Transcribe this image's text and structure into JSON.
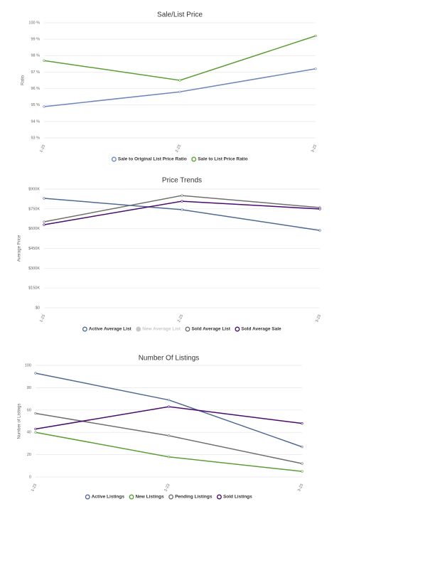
{
  "chart_data": [
    {
      "type": "line",
      "title": "Sale/List Price",
      "y_label": "Ratio",
      "x": [
        "1-23",
        "2-23",
        "3-23"
      ],
      "ylim": [
        93,
        100
      ],
      "yticks": [
        {
          "value": 93,
          "label": "93 %"
        },
        {
          "value": 94,
          "label": "94 %"
        },
        {
          "value": 95,
          "label": "95 %"
        },
        {
          "value": 96,
          "label": "96 %"
        },
        {
          "value": 97,
          "label": "97 %"
        },
        {
          "value": 98,
          "label": "98 %"
        },
        {
          "value": 99,
          "label": "99 %"
        },
        {
          "value": 100,
          "label": "100 %"
        }
      ],
      "grid": true,
      "series": [
        {
          "name": "Sale to Original List Price Ratio",
          "color": "#6f86bd",
          "values": [
            94.9,
            95.8,
            97.2
          ]
        },
        {
          "name": "Sale to List Price Ratio",
          "color": "#5c9e35",
          "values": [
            97.7,
            96.5,
            99.2
          ]
        }
      ]
    },
    {
      "type": "line",
      "title": "Price Trends",
      "y_label": "Average Price",
      "x": [
        "1-23",
        "2-23",
        "3-23"
      ],
      "ylim": [
        0,
        900000
      ],
      "yticks": [
        {
          "value": 0,
          "label": "$0"
        },
        {
          "value": 150000,
          "label": "$150K"
        },
        {
          "value": 300000,
          "label": "$300K"
        },
        {
          "value": 450000,
          "label": "$450K"
        },
        {
          "value": 600000,
          "label": "$600K"
        },
        {
          "value": 750000,
          "label": "$750K"
        },
        {
          "value": 900000,
          "label": "$900K"
        }
      ],
      "grid": true,
      "series": [
        {
          "name": "Active Average List",
          "color": "#4e6a92",
          "values": [
            830000,
            744000,
            587000
          ]
        },
        {
          "name": "New Average List",
          "color": "#c8c8c8",
          "hidden": true,
          "values": [
            null,
            null,
            null
          ]
        },
        {
          "name": "Sold Average List",
          "color": "#707070",
          "values": [
            652000,
            851000,
            760000
          ]
        },
        {
          "name": "Sold Average Sale",
          "color": "#4b0a6e",
          "values": [
            630000,
            808000,
            749000
          ]
        }
      ]
    },
    {
      "type": "line",
      "title": "Number Of Listings",
      "y_label": "Number of Listings",
      "x": [
        "1-23",
        "2-23",
        "3-23"
      ],
      "ylim": [
        0,
        100
      ],
      "yticks": [
        0,
        20,
        40,
        60,
        80,
        100
      ],
      "grid": true,
      "series": [
        {
          "name": "Active Listings",
          "color": "#4e6a92",
          "values": [
            93,
            69,
            27
          ]
        },
        {
          "name": "New Listings",
          "color": "#5c9e35",
          "values": [
            40,
            18,
            5
          ]
        },
        {
          "name": "Pending Listings",
          "color": "#707070",
          "values": [
            57,
            37,
            12
          ]
        },
        {
          "name": "Sold Listings",
          "color": "#4b0a6e",
          "values": [
            43,
            63,
            48
          ]
        }
      ]
    }
  ]
}
